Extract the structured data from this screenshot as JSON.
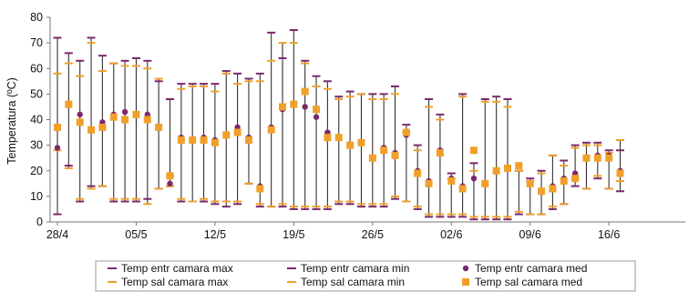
{
  "chart_data": {
    "type": "errorbar",
    "ylabel": "Temperatura (ºC)",
    "ylim": [
      0,
      80
    ],
    "yticks": [
      0,
      10,
      20,
      30,
      40,
      50,
      60,
      70,
      80
    ],
    "x_tick_labels": [
      "28/4",
      "05/5",
      "12/5",
      "19/5",
      "26/5",
      "02/6",
      "09/6",
      "16/6"
    ],
    "x_tick_days": [
      0,
      7,
      14,
      21,
      28,
      35,
      42,
      49
    ],
    "grid": false,
    "legend_position": "bottom",
    "colors": {
      "entr": "#7B2A6B",
      "sal": "#F0A02A",
      "whisker": "#333333"
    },
    "series": [
      {
        "name": "Temp entr camara max",
        "values": [
          72,
          66,
          63,
          72,
          65,
          62,
          63,
          64,
          63,
          55,
          48,
          54,
          54,
          54,
          54,
          59,
          58,
          56,
          58,
          74,
          64,
          75,
          63,
          57,
          55,
          49,
          51,
          50,
          50,
          50,
          53,
          38,
          30,
          48,
          42,
          19,
          50,
          23,
          48,
          49,
          48,
          20,
          17,
          20,
          26,
          24,
          30,
          31,
          31,
          28,
          28
        ]
      },
      {
        "name": "Temp entr camara min",
        "values": [
          3,
          22,
          8,
          14,
          14,
          8,
          8,
          8,
          9,
          13,
          14,
          8,
          8,
          8,
          7,
          6,
          7,
          15,
          6,
          6,
          6,
          5,
          5,
          5,
          5,
          7,
          7,
          6,
          6,
          6,
          9,
          8,
          5,
          2,
          2,
          2,
          2,
          1,
          1,
          1,
          1,
          3,
          3,
          3,
          5,
          7,
          14,
          13,
          17,
          13,
          12
        ]
      },
      {
        "name": "Temp entr camara med",
        "values": [
          29,
          46,
          42,
          36,
          39,
          42,
          43,
          42,
          42,
          37,
          15,
          33,
          32,
          33,
          32,
          34,
          37,
          33,
          14,
          37,
          44,
          46,
          45,
          41,
          35,
          33,
          30,
          31,
          25,
          29,
          27,
          34,
          20,
          16,
          28,
          17,
          14,
          17,
          15,
          20,
          21,
          22,
          15,
          12,
          14,
          17,
          19,
          25,
          26,
          26,
          20
        ]
      },
      {
        "name": "Temp sal camara max",
        "values": [
          58,
          62,
          57,
          70,
          59,
          62,
          61,
          61,
          60,
          56,
          18,
          52,
          53,
          53,
          51,
          58,
          54,
          55,
          55,
          63,
          70,
          70,
          62,
          53,
          52,
          48,
          49,
          50,
          48,
          48,
          50,
          35,
          28,
          45,
          40,
          17,
          49,
          20,
          47,
          47,
          45,
          20,
          16,
          19,
          26,
          22,
          29,
          30,
          30,
          27,
          32
        ]
      },
      {
        "name": "Temp sal camara min",
        "values": [
          28,
          21,
          9,
          13,
          14,
          9,
          9,
          9,
          7,
          13,
          14,
          9,
          8,
          9,
          8,
          8,
          8,
          15,
          7,
          6,
          7,
          6,
          6,
          6,
          6,
          8,
          8,
          7,
          7,
          7,
          10,
          8,
          6,
          3,
          3,
          3,
          3,
          2,
          2,
          2,
          2,
          4,
          3,
          3,
          6,
          7,
          17,
          13,
          18,
          13,
          16
        ]
      },
      {
        "name": "Temp sal camara med",
        "values": [
          37,
          46,
          39,
          36,
          37,
          41,
          40,
          42,
          40,
          37,
          18,
          32,
          32,
          32,
          31,
          34,
          35,
          32,
          13,
          36,
          45,
          46,
          51,
          44,
          33,
          33,
          30,
          31,
          25,
          28,
          26,
          35,
          19,
          15,
          27,
          16,
          13,
          28,
          15,
          20,
          21,
          22,
          15,
          12,
          13,
          16,
          17,
          25,
          25,
          25,
          19
        ]
      }
    ],
    "x_day_offsets": [
      0,
      1,
      2,
      3,
      4,
      5,
      6,
      7,
      8,
      9,
      10,
      11,
      12,
      13,
      14,
      15,
      16,
      17,
      18,
      19,
      20,
      21,
      22,
      23,
      24,
      25,
      26,
      27,
      28,
      29,
      30,
      31,
      32,
      33,
      34,
      35,
      36,
      37,
      38,
      39,
      40,
      41,
      42,
      43,
      44,
      45,
      46,
      47,
      48,
      49,
      50
    ]
  }
}
